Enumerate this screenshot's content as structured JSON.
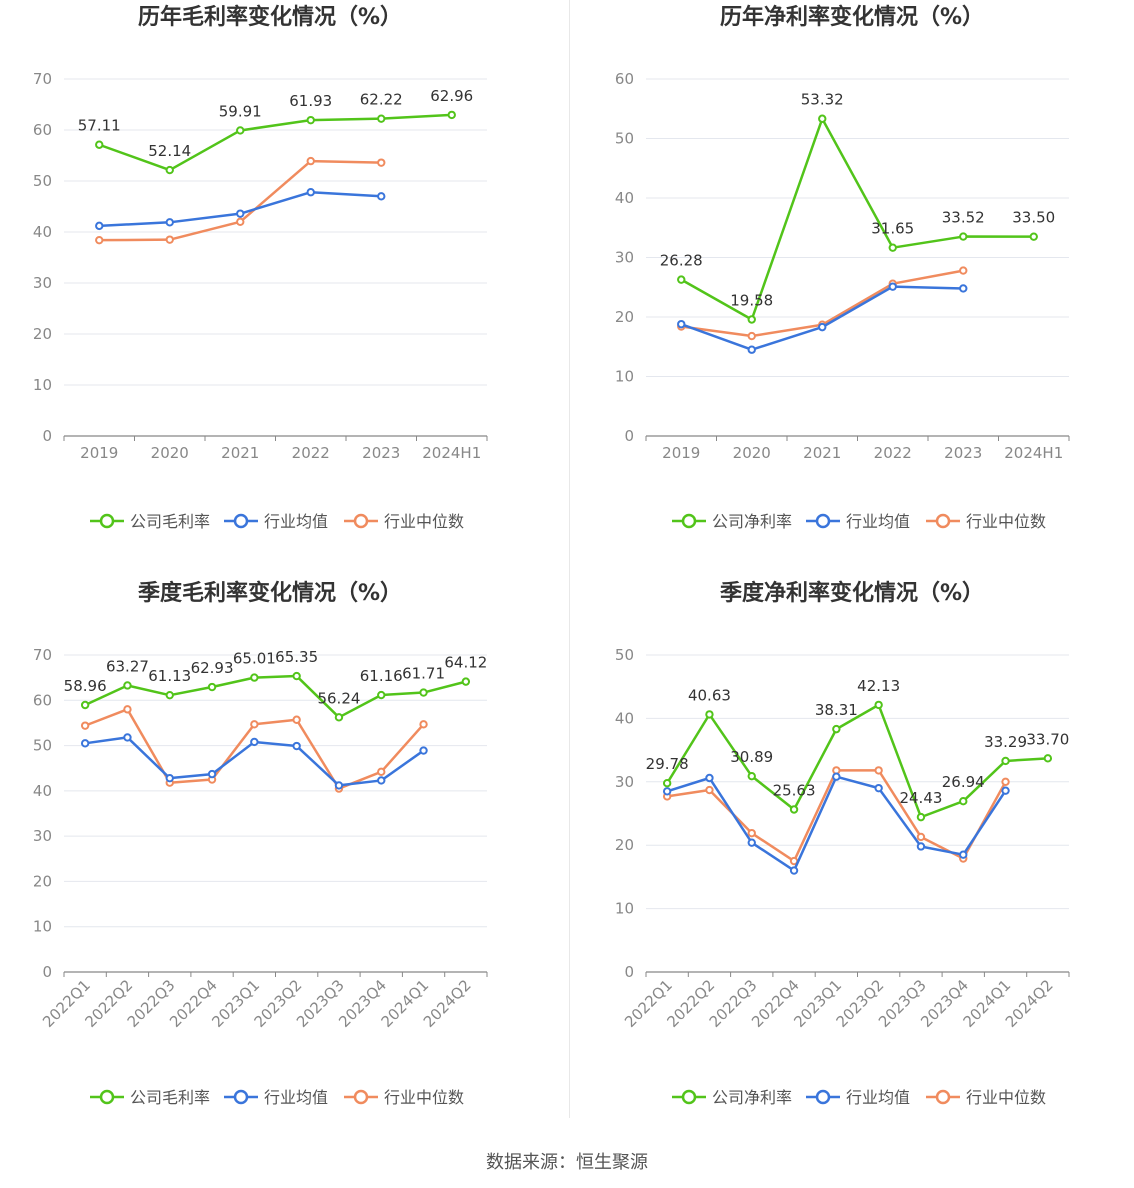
{
  "source": "数据来源：恒生聚源",
  "colors": {
    "company": "#52c41a",
    "avg": "#3a75db",
    "median": "#f08b5e",
    "grid": "#e4e7ee",
    "axis": "#888888"
  },
  "chart_data": [
    {
      "type": "line",
      "title": "历年毛利率变化情况（%）",
      "categories": [
        "2019",
        "2020",
        "2021",
        "2022",
        "2023",
        "2024H1"
      ],
      "ylim": [
        0,
        70
      ],
      "yticks": [
        0,
        10,
        20,
        30,
        40,
        50,
        60,
        70
      ],
      "series": [
        {
          "name": "公司毛利率",
          "key": "company",
          "values": [
            57.11,
            52.14,
            59.91,
            61.93,
            62.22,
            62.96
          ],
          "labels": [
            "57.11",
            "52.14",
            "59.91",
            "61.93",
            "62.22",
            "62.96"
          ]
        },
        {
          "name": "行业均值",
          "key": "avg",
          "values": [
            41.2,
            41.9,
            43.6,
            47.8,
            47.0,
            null
          ]
        },
        {
          "name": "行业中位数",
          "key": "median",
          "values": [
            38.4,
            38.5,
            42.0,
            53.9,
            53.6,
            null
          ]
        }
      ]
    },
    {
      "type": "line",
      "title": "历年净利率变化情况（%）",
      "categories": [
        "2019",
        "2020",
        "2021",
        "2022",
        "2023",
        "2024H1"
      ],
      "ylim": [
        0,
        60
      ],
      "yticks": [
        0,
        10,
        20,
        30,
        40,
        50,
        60
      ],
      "series": [
        {
          "name": "公司净利率",
          "key": "company",
          "values": [
            26.28,
            19.58,
            53.32,
            31.65,
            33.52,
            33.5
          ],
          "labels": [
            "26.28",
            "19.58",
            "53.32",
            "31.65",
            "33.52",
            "33.50"
          ]
        },
        {
          "name": "行业均值",
          "key": "avg",
          "values": [
            18.8,
            14.5,
            18.3,
            25.1,
            24.8,
            null
          ]
        },
        {
          "name": "行业中位数",
          "key": "median",
          "values": [
            18.4,
            16.8,
            18.7,
            25.6,
            27.8,
            null
          ]
        }
      ]
    },
    {
      "type": "line",
      "title": "季度毛利率变化情况（%）",
      "categories": [
        "2022Q1",
        "2022Q2",
        "2022Q3",
        "2022Q4",
        "2023Q1",
        "2023Q2",
        "2023Q3",
        "2023Q4",
        "2024Q1",
        "2024Q2"
      ],
      "ylim": [
        0,
        70
      ],
      "yticks": [
        0,
        10,
        20,
        30,
        40,
        50,
        60,
        70
      ],
      "series": [
        {
          "name": "公司毛利率",
          "key": "company",
          "values": [
            58.96,
            63.27,
            61.13,
            62.93,
            65.01,
            65.35,
            56.24,
            61.16,
            61.71,
            64.12
          ],
          "labels": [
            "58.96",
            "63.27",
            "61.13",
            "62.93",
            "65.01",
            "65.35",
            "56.24",
            "61.16",
            "61.71",
            "64.12"
          ]
        },
        {
          "name": "行业均值",
          "key": "avg",
          "values": [
            50.5,
            51.8,
            42.8,
            43.7,
            50.8,
            49.9,
            41.2,
            42.3,
            48.9,
            null
          ]
        },
        {
          "name": "行业中位数",
          "key": "median",
          "values": [
            54.4,
            58.0,
            41.8,
            42.5,
            54.7,
            55.7,
            40.5,
            44.2,
            54.7,
            null
          ]
        }
      ]
    },
    {
      "type": "line",
      "title": "季度净利率变化情况（%）",
      "categories": [
        "2022Q1",
        "2022Q2",
        "2022Q3",
        "2022Q4",
        "2023Q1",
        "2023Q2",
        "2023Q3",
        "2023Q4",
        "2024Q1",
        "2024Q2"
      ],
      "ylim": [
        0,
        50
      ],
      "yticks": [
        0,
        10,
        20,
        30,
        40,
        50
      ],
      "series": [
        {
          "name": "公司净利率",
          "key": "company",
          "values": [
            29.78,
            40.63,
            30.89,
            25.63,
            38.31,
            42.13,
            24.43,
            26.94,
            33.29,
            33.7
          ],
          "labels": [
            "29.78",
            "40.63",
            "30.89",
            "25.63",
            "38.31",
            "42.13",
            "24.43",
            "26.94",
            "33.29",
            "33.70"
          ]
        },
        {
          "name": "行业均值",
          "key": "avg",
          "values": [
            28.5,
            30.6,
            20.4,
            16.0,
            30.8,
            29.0,
            19.8,
            18.5,
            28.6,
            null
          ]
        },
        {
          "name": "行业中位数",
          "key": "median",
          "values": [
            27.7,
            28.7,
            21.9,
            17.5,
            31.8,
            31.8,
            21.3,
            17.9,
            30.0,
            null
          ]
        }
      ]
    }
  ]
}
